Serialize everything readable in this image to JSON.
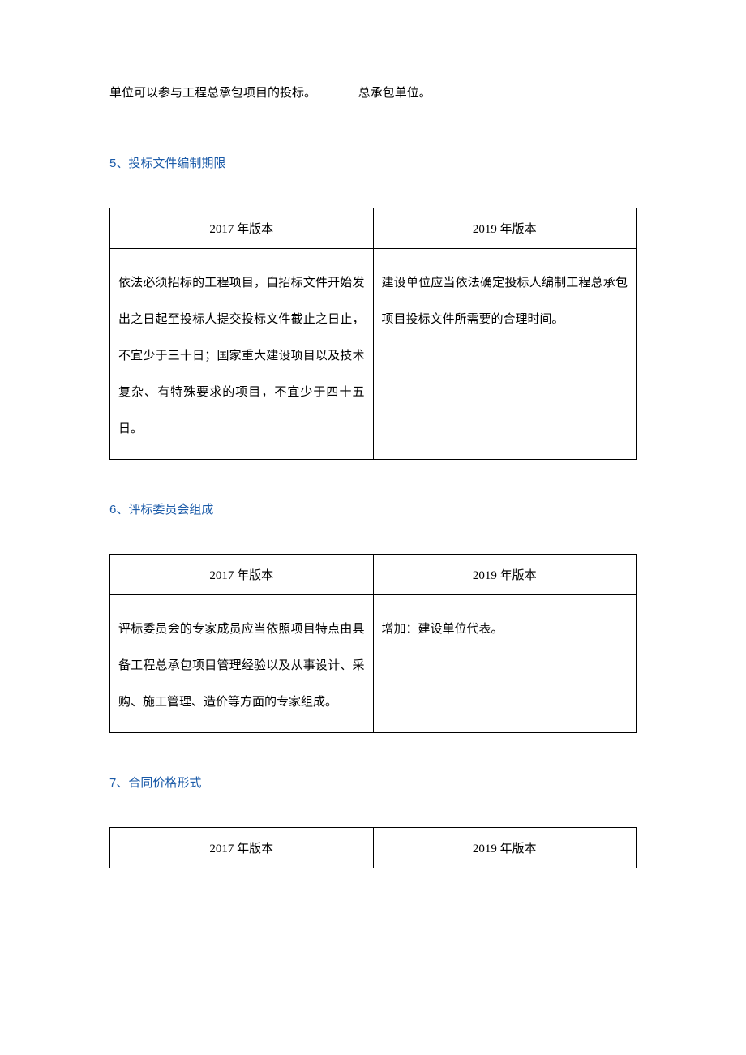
{
  "topFragment": {
    "leftText": "单位可以参与工程总承包项目的投标。",
    "rightText": "总承包单位。"
  },
  "sections": [
    {
      "number": "5",
      "title": "投标文件编制期限",
      "headers": [
        "2017 年版本",
        "2019 年版本"
      ],
      "row": {
        "left": "依法必须招标的工程项目，自招标文件开始发出之日起至投标人提交投标文件截止之日止，不宜少于三十日；国家重大建设项目以及技术复杂、有特殊要求的项目，不宜少于四十五日。",
        "right": "建设单位应当依法确定投标人编制工程总承包项目投标文件所需要的合理时间。"
      }
    },
    {
      "number": "6",
      "title": "评标委员会组成",
      "headers": [
        "2017 年版本",
        "2019 年版本"
      ],
      "row": {
        "left": "评标委员会的专家成员应当依照项目特点由具备工程总承包项目管理经验以及从事设计、采购、施工管理、造价等方面的专家组成。",
        "right": "增加：建设单位代表。"
      }
    },
    {
      "number": "7",
      "title": "合同价格形式",
      "headers": [
        "2017 年版本",
        "2019 年版本"
      ],
      "row": null
    }
  ],
  "colors": {
    "headingColor": "#1a5aa8",
    "textColor": "#000000",
    "borderColor": "#000000",
    "background": "#ffffff"
  },
  "typography": {
    "bodyFontSize": 15,
    "lineHeightMultiplier": 3.0
  }
}
